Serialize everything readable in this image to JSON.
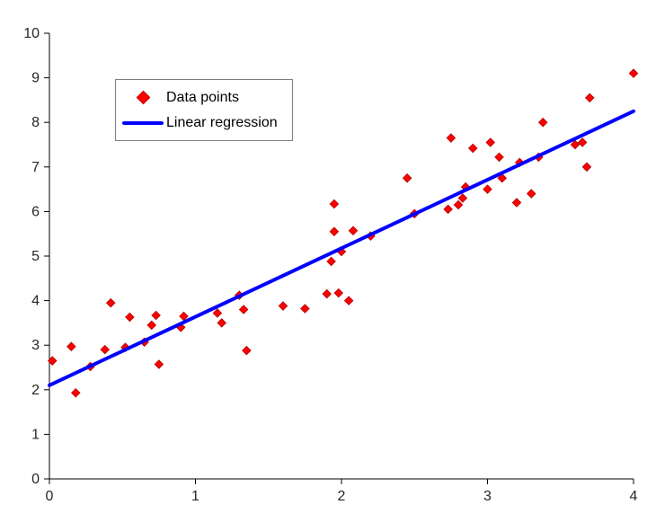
{
  "chart_data": {
    "type": "scatter",
    "title": "",
    "xlabel": "",
    "ylabel": "",
    "xlim": [
      0,
      4
    ],
    "ylim": [
      0,
      10
    ],
    "xticks": [
      0,
      1,
      2,
      3,
      4
    ],
    "yticks": [
      0,
      1,
      2,
      3,
      4,
      5,
      6,
      7,
      8,
      9,
      10
    ],
    "grid": false,
    "axis_color": "#000000",
    "label_color": "#262626",
    "background_color": "#ffffff",
    "legend": {
      "position": "top-left",
      "entries": [
        {
          "label": "Data points",
          "marker": "diamond",
          "color": "#ff0000"
        },
        {
          "label": "Linear regression",
          "marker": "line",
          "color": "#0000ff"
        }
      ]
    },
    "series": [
      {
        "name": "Data points",
        "type": "scatter",
        "marker": "diamond",
        "color": "#ff0000",
        "edge_color": "#b00000",
        "points": [
          [
            0.02,
            2.65
          ],
          [
            0.15,
            2.97
          ],
          [
            0.18,
            1.93
          ],
          [
            0.28,
            2.52
          ],
          [
            0.38,
            2.9
          ],
          [
            0.42,
            3.95
          ],
          [
            0.52,
            2.95
          ],
          [
            0.55,
            3.63
          ],
          [
            0.65,
            3.07
          ],
          [
            0.7,
            3.45
          ],
          [
            0.73,
            3.67
          ],
          [
            0.75,
            2.57
          ],
          [
            0.9,
            3.4
          ],
          [
            0.92,
            3.65
          ],
          [
            1.15,
            3.72
          ],
          [
            1.18,
            3.5
          ],
          [
            1.3,
            4.12
          ],
          [
            1.33,
            3.8
          ],
          [
            1.35,
            2.88
          ],
          [
            1.6,
            3.88
          ],
          [
            1.75,
            3.82
          ],
          [
            1.9,
            4.15
          ],
          [
            1.93,
            4.88
          ],
          [
            1.95,
            5.55
          ],
          [
            1.95,
            6.17
          ],
          [
            1.98,
            4.17
          ],
          [
            2.0,
            5.1
          ],
          [
            2.05,
            4.0
          ],
          [
            2.08,
            5.57
          ],
          [
            2.2,
            5.45
          ],
          [
            2.45,
            6.75
          ],
          [
            2.5,
            5.95
          ],
          [
            2.73,
            6.05
          ],
          [
            2.75,
            7.65
          ],
          [
            2.8,
            6.15
          ],
          [
            2.83,
            6.3
          ],
          [
            2.85,
            6.55
          ],
          [
            2.9,
            7.42
          ],
          [
            3.0,
            6.5
          ],
          [
            3.02,
            7.55
          ],
          [
            3.08,
            7.22
          ],
          [
            3.1,
            6.75
          ],
          [
            3.2,
            6.2
          ],
          [
            3.22,
            7.1
          ],
          [
            3.3,
            6.4
          ],
          [
            3.35,
            7.22
          ],
          [
            3.38,
            8.0
          ],
          [
            3.6,
            7.5
          ],
          [
            3.65,
            7.55
          ],
          [
            3.68,
            7.0
          ],
          [
            3.7,
            8.55
          ],
          [
            4.0,
            9.1
          ]
        ]
      },
      {
        "name": "Linear regression",
        "type": "line",
        "color": "#0000ff",
        "width": 4,
        "x": [
          0,
          4
        ],
        "y": [
          2.1,
          8.25
        ],
        "slope": 1.54,
        "intercept": 2.1
      }
    ]
  }
}
